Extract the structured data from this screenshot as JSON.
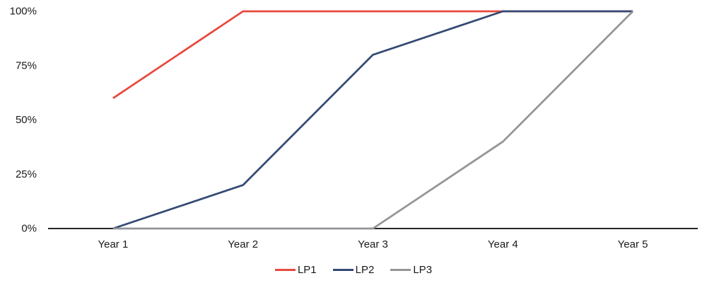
{
  "chart_data": {
    "type": "line",
    "title": "",
    "xlabel": "",
    "ylabel": "",
    "categories": [
      "Year 1",
      "Year 2",
      "Year 3",
      "Year 4",
      "Year 5"
    ],
    "series": [
      {
        "name": "LP1",
        "color": "#E8493E",
        "values": [
          60,
          100,
          100,
          100,
          100
        ]
      },
      {
        "name": "LP2",
        "color": "#334A74",
        "values": [
          0,
          20,
          80,
          100,
          100
        ]
      },
      {
        "name": "LP3",
        "color": "#939598",
        "values": [
          0,
          0,
          0,
          40,
          100
        ]
      }
    ],
    "ylim": [
      0,
      100
    ],
    "y_ticks": [
      {
        "value": 0,
        "label": "0%"
      },
      {
        "value": 25,
        "label": "25%"
      },
      {
        "value": 50,
        "label": "50%"
      },
      {
        "value": 75,
        "label": "75%"
      },
      {
        "value": 100,
        "label": "100%"
      }
    ],
    "grid": false,
    "markers": false,
    "legend_position": "bottom-center",
    "axis_color": "#262626",
    "text_color": "#1a1a1a",
    "line_width": 2.75
  }
}
